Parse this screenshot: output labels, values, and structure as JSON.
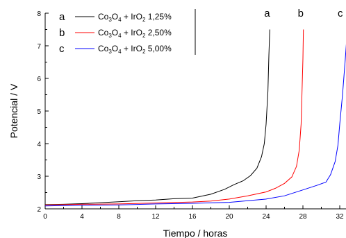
{
  "chart_data": {
    "type": "line",
    "xlabel": "Tiempo / horas",
    "ylabel": "Potencial / V",
    "xlim": [
      0,
      32
    ],
    "ylim": [
      2,
      8
    ],
    "xticks": [
      "0",
      "4",
      "8",
      "12",
      "16",
      "20",
      "24",
      "28",
      "32"
    ],
    "yticks": [
      "2",
      "3",
      "4",
      "5",
      "6",
      "7",
      "8"
    ],
    "grid": false,
    "legend_position": "top-left",
    "series": [
      {
        "letter": "a",
        "formula": {
          "a": "Co",
          "a_sub": "3",
          "b": "O",
          "b_sub": "4",
          "c": " + IrO",
          "c_sub": "2",
          "d": " 1,25%"
        },
        "color": "#000000",
        "points": [
          [
            0,
            2.13
          ],
          [
            2,
            2.14
          ],
          [
            4,
            2.16
          ],
          [
            6,
            2.19
          ],
          [
            8,
            2.22
          ],
          [
            10,
            2.25
          ],
          [
            12,
            2.27
          ],
          [
            14,
            2.31
          ],
          [
            16,
            2.33
          ],
          [
            18,
            2.45
          ],
          [
            19.5,
            2.6
          ],
          [
            20.5,
            2.74
          ],
          [
            21.5,
            2.86
          ],
          [
            22.3,
            3.02
          ],
          [
            23,
            3.25
          ],
          [
            23.5,
            3.6
          ],
          [
            23.8,
            4.0
          ],
          [
            24,
            4.6
          ],
          [
            24.2,
            5.6
          ],
          [
            24.3,
            6.7
          ],
          [
            24.4,
            7.5
          ]
        ]
      },
      {
        "letter": "b",
        "formula": {
          "a": "Co",
          "a_sub": "3",
          "b": "O",
          "b_sub": "4",
          "c": " + IrO",
          "c_sub": "2",
          "d": " 2,50%"
        },
        "color": "#ff0000",
        "points": [
          [
            0,
            2.12
          ],
          [
            4,
            2.14
          ],
          [
            8,
            2.15
          ],
          [
            12,
            2.18
          ],
          [
            16,
            2.21
          ],
          [
            18,
            2.24
          ],
          [
            20,
            2.3
          ],
          [
            22,
            2.4
          ],
          [
            24,
            2.52
          ],
          [
            25,
            2.63
          ],
          [
            26,
            2.78
          ],
          [
            26.8,
            2.98
          ],
          [
            27.3,
            3.3
          ],
          [
            27.6,
            3.8
          ],
          [
            27.8,
            4.6
          ],
          [
            27.9,
            5.6
          ],
          [
            28,
            6.6
          ],
          [
            28.05,
            7.5
          ]
        ]
      },
      {
        "letter": "c",
        "formula": {
          "a": "Co",
          "a_sub": "3",
          "b": "O",
          "b_sub": "4",
          "c": " + IrO",
          "c_sub": "2",
          "d": " 5,00%"
        },
        "color": "#0000ff",
        "points": [
          [
            0,
            2.09
          ],
          [
            4,
            2.11
          ],
          [
            8,
            2.12
          ],
          [
            12,
            2.15
          ],
          [
            16,
            2.17
          ],
          [
            20,
            2.2
          ],
          [
            24,
            2.3
          ],
          [
            26,
            2.4
          ],
          [
            28,
            2.58
          ],
          [
            29.5,
            2.72
          ],
          [
            30.5,
            2.82
          ],
          [
            31,
            3.05
          ],
          [
            31.5,
            3.45
          ],
          [
            31.8,
            3.95
          ],
          [
            32,
            4.6
          ],
          [
            32.3,
            5.5
          ],
          [
            32.6,
            6.6
          ],
          [
            32.8,
            7.4
          ]
        ]
      }
    ]
  }
}
